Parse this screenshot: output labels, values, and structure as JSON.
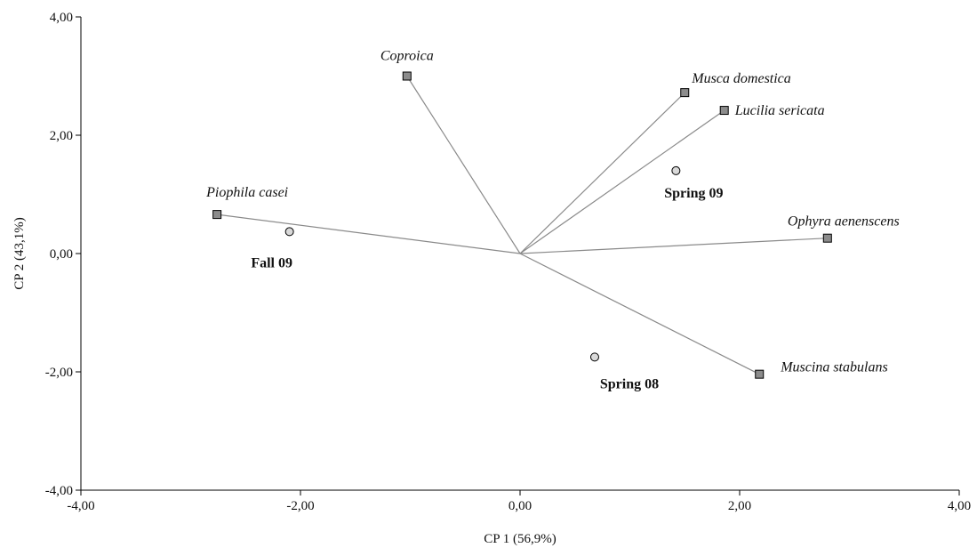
{
  "chart_data": {
    "type": "biplot",
    "xlabel": "CP 1 (56,9%)",
    "ylabel": "CP 2 (43,1%)",
    "xlim": [
      -4,
      4
    ],
    "ylim": [
      -4,
      4
    ],
    "xticks": [
      "-4,00",
      "-2,00",
      "0,00",
      "2,00",
      "4,00"
    ],
    "yticks": [
      "-4,00",
      "-2,00",
      "0,00",
      "2,00",
      "4,00"
    ],
    "grid": false,
    "vectors": [
      {
        "label": "Coproica",
        "x": -1.03,
        "y": 3.0
      },
      {
        "label": "Musca domestica",
        "x": 1.5,
        "y": 2.72
      },
      {
        "label": "Lucilia sericata",
        "x": 1.86,
        "y": 2.42
      },
      {
        "label": "Piophila casei",
        "x": -2.76,
        "y": 0.66
      },
      {
        "label": "Ophyra aenenscens",
        "x": 2.8,
        "y": 0.26
      },
      {
        "label": "Muscina stabulans",
        "x": 2.18,
        "y": -2.04
      }
    ],
    "points": [
      {
        "label": "Spring 09",
        "x": 1.42,
        "y": 1.4
      },
      {
        "label": "Fall 09",
        "x": -2.1,
        "y": 0.37
      },
      {
        "label": "Spring 08",
        "x": 0.68,
        "y": -1.75
      }
    ]
  }
}
